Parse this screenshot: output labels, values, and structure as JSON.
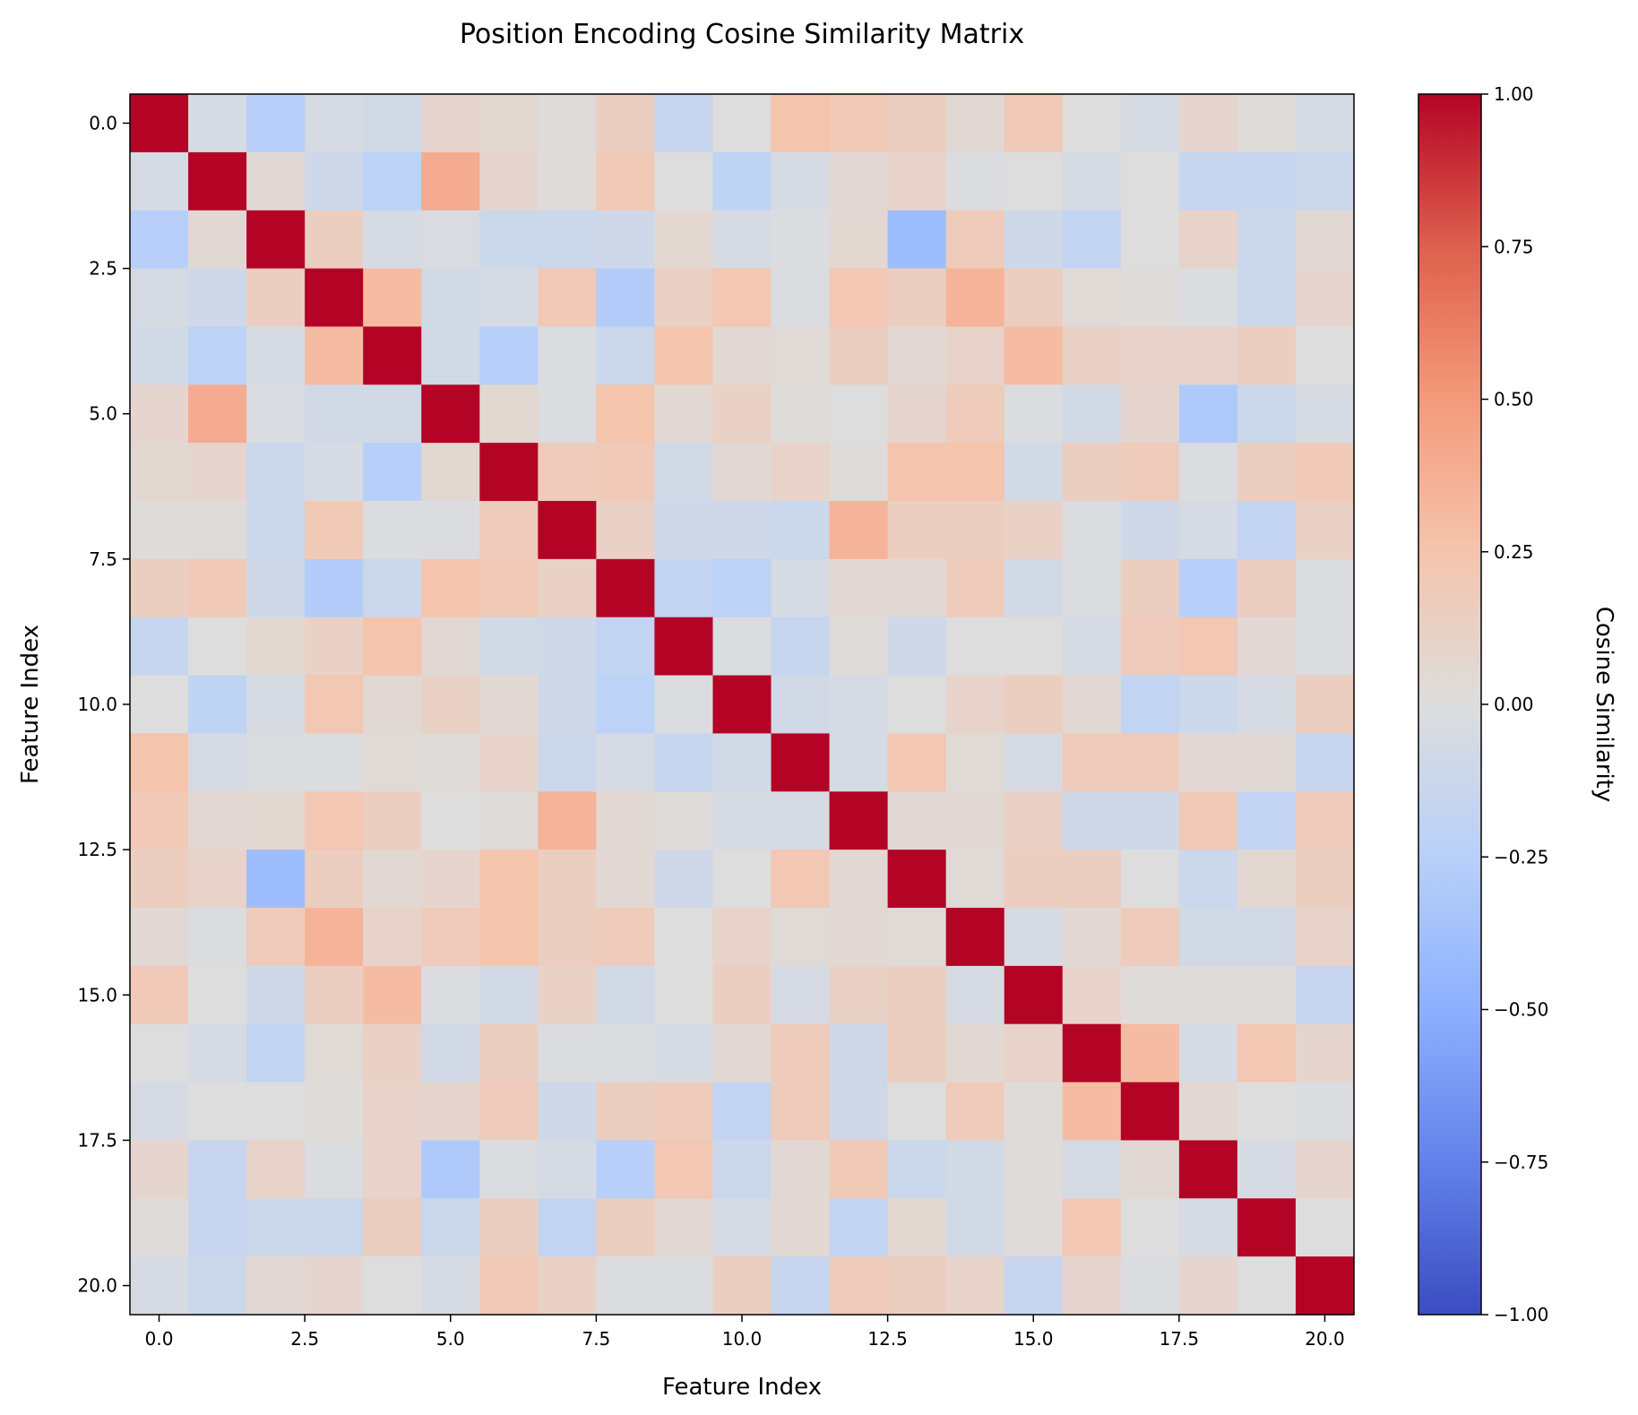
{
  "chart_data": {
    "type": "heatmap",
    "title": "Position Encoding Cosine Similarity Matrix",
    "xlabel": "Feature Index",
    "ylabel": "Feature Index",
    "colorbar_label": "Cosine Similarity",
    "colormap": "coolwarm",
    "vmin": -1.0,
    "vmax": 1.0,
    "x_ticks": [
      "0.0",
      "2.5",
      "5.0",
      "7.5",
      "10.0",
      "12.5",
      "15.0",
      "17.5",
      "20.0"
    ],
    "y_ticks": [
      "0.0",
      "2.5",
      "5.0",
      "7.5",
      "10.0",
      "12.5",
      "15.0",
      "17.5",
      "20.0"
    ],
    "colorbar_ticks": [
      "−1.00",
      "−0.75",
      "−0.50",
      "−0.25",
      "0.00",
      "0.25",
      "0.50",
      "0.75",
      "1.00"
    ],
    "size": 21,
    "matrix": [
      [
        1.0,
        -0.05,
        -0.25,
        -0.05,
        -0.08,
        0.08,
        0.06,
        0.02,
        0.15,
        -0.15,
        0.0,
        0.25,
        0.2,
        0.15,
        0.05,
        0.2,
        0.0,
        -0.05,
        0.08,
        0.02,
        -0.05
      ],
      [
        -0.05,
        1.0,
        0.05,
        -0.1,
        -0.22,
        0.4,
        0.08,
        0.02,
        0.2,
        0.0,
        -0.2,
        -0.05,
        0.05,
        0.1,
        -0.02,
        0.0,
        -0.05,
        0.0,
        -0.15,
        -0.15,
        -0.12
      ],
      [
        -0.25,
        0.05,
        1.0,
        0.15,
        -0.05,
        -0.03,
        -0.12,
        -0.12,
        -0.1,
        0.06,
        -0.05,
        -0.02,
        0.06,
        -0.4,
        0.18,
        -0.1,
        -0.18,
        0.0,
        0.1,
        -0.12,
        0.05
      ],
      [
        -0.05,
        -0.1,
        0.15,
        1.0,
        0.3,
        -0.08,
        -0.05,
        0.2,
        -0.28,
        0.12,
        0.22,
        -0.02,
        0.22,
        0.15,
        0.35,
        0.15,
        0.03,
        0.02,
        -0.02,
        -0.12,
        0.08
      ],
      [
        -0.08,
        -0.22,
        -0.05,
        0.3,
        1.0,
        -0.08,
        -0.25,
        -0.02,
        -0.12,
        0.25,
        0.05,
        0.03,
        0.15,
        0.05,
        0.1,
        0.3,
        0.12,
        0.1,
        0.1,
        0.15,
        0.0
      ],
      [
        0.08,
        0.4,
        -0.03,
        -0.08,
        -0.08,
        1.0,
        0.06,
        -0.02,
        0.25,
        0.05,
        0.12,
        0.02,
        0.0,
        0.08,
        0.18,
        -0.02,
        -0.08,
        0.08,
        -0.3,
        -0.12,
        -0.05
      ],
      [
        0.06,
        0.08,
        -0.12,
        -0.05,
        -0.25,
        0.06,
        1.0,
        0.18,
        0.2,
        -0.08,
        0.05,
        0.1,
        0.02,
        0.25,
        0.25,
        -0.08,
        0.15,
        0.18,
        -0.02,
        0.15,
        0.2
      ],
      [
        0.02,
        0.02,
        -0.12,
        0.2,
        -0.02,
        -0.02,
        0.18,
        1.0,
        0.12,
        -0.1,
        -0.1,
        -0.12,
        0.35,
        0.15,
        0.15,
        0.12,
        -0.02,
        -0.1,
        -0.05,
        -0.18,
        0.12
      ],
      [
        0.15,
        0.2,
        -0.1,
        -0.28,
        -0.12,
        0.25,
        0.2,
        0.12,
        1.0,
        -0.18,
        -0.22,
        -0.05,
        0.05,
        0.05,
        0.18,
        -0.08,
        -0.02,
        0.15,
        -0.25,
        0.15,
        -0.02
      ],
      [
        -0.15,
        0.0,
        0.06,
        0.12,
        0.25,
        0.05,
        -0.08,
        -0.1,
        -0.18,
        1.0,
        -0.02,
        -0.15,
        0.02,
        -0.1,
        0.0,
        0.0,
        -0.05,
        0.18,
        0.22,
        0.05,
        -0.02
      ],
      [
        0.0,
        -0.2,
        -0.05,
        0.22,
        0.05,
        0.12,
        0.05,
        -0.1,
        -0.22,
        -0.02,
        1.0,
        -0.08,
        -0.05,
        0.0,
        0.1,
        0.15,
        0.05,
        -0.18,
        -0.12,
        -0.05,
        0.15
      ],
      [
        0.25,
        -0.05,
        -0.02,
        -0.02,
        0.03,
        0.02,
        0.1,
        -0.12,
        -0.05,
        -0.15,
        -0.08,
        1.0,
        -0.05,
        0.22,
        0.03,
        -0.05,
        0.18,
        0.18,
        0.05,
        0.05,
        -0.15
      ],
      [
        0.2,
        0.05,
        0.06,
        0.22,
        0.15,
        0.0,
        0.02,
        0.35,
        0.05,
        0.02,
        -0.05,
        -0.05,
        1.0,
        0.05,
        0.05,
        0.12,
        -0.1,
        -0.1,
        0.2,
        -0.18,
        0.18
      ],
      [
        0.15,
        0.1,
        -0.4,
        0.15,
        0.05,
        0.08,
        0.25,
        0.15,
        0.05,
        -0.1,
        0.0,
        0.22,
        0.05,
        1.0,
        0.03,
        0.15,
        0.15,
        0.0,
        -0.12,
        0.06,
        0.15
      ],
      [
        0.05,
        -0.02,
        0.18,
        0.35,
        0.1,
        0.18,
        0.25,
        0.15,
        0.18,
        0.0,
        0.1,
        0.03,
        0.05,
        0.03,
        1.0,
        -0.05,
        0.05,
        0.18,
        -0.08,
        -0.08,
        0.1
      ],
      [
        0.2,
        0.0,
        -0.1,
        0.15,
        0.3,
        -0.02,
        -0.08,
        0.12,
        -0.08,
        0.0,
        0.15,
        -0.05,
        0.12,
        0.15,
        -0.05,
        1.0,
        0.1,
        0.02,
        0.02,
        0.02,
        -0.15
      ],
      [
        0.0,
        -0.05,
        -0.18,
        0.03,
        0.12,
        -0.08,
        0.15,
        -0.02,
        -0.02,
        -0.05,
        0.05,
        0.18,
        -0.1,
        0.15,
        0.05,
        0.1,
        1.0,
        0.3,
        -0.05,
        0.22,
        0.08
      ],
      [
        -0.05,
        0.0,
        0.0,
        0.02,
        0.1,
        0.08,
        0.18,
        -0.1,
        0.15,
        0.18,
        -0.18,
        0.18,
        -0.1,
        0.0,
        0.18,
        0.02,
        0.3,
        1.0,
        0.05,
        0.0,
        -0.02
      ],
      [
        0.08,
        -0.15,
        0.1,
        -0.02,
        0.1,
        -0.3,
        -0.02,
        -0.05,
        -0.25,
        0.22,
        -0.12,
        0.05,
        0.2,
        -0.12,
        -0.08,
        0.02,
        -0.05,
        0.05,
        1.0,
        -0.05,
        0.08
      ],
      [
        0.02,
        -0.15,
        -0.12,
        -0.12,
        0.15,
        -0.12,
        0.15,
        -0.18,
        0.15,
        0.05,
        -0.05,
        0.05,
        -0.18,
        0.06,
        -0.08,
        0.02,
        0.22,
        0.0,
        -0.05,
        1.0,
        0.0
      ],
      [
        -0.05,
        -0.12,
        0.05,
        0.08,
        0.0,
        -0.05,
        0.2,
        0.12,
        -0.02,
        -0.02,
        0.15,
        -0.15,
        0.18,
        0.15,
        0.1,
        -0.15,
        0.08,
        -0.02,
        0.08,
        0.0,
        1.0
      ]
    ]
  }
}
